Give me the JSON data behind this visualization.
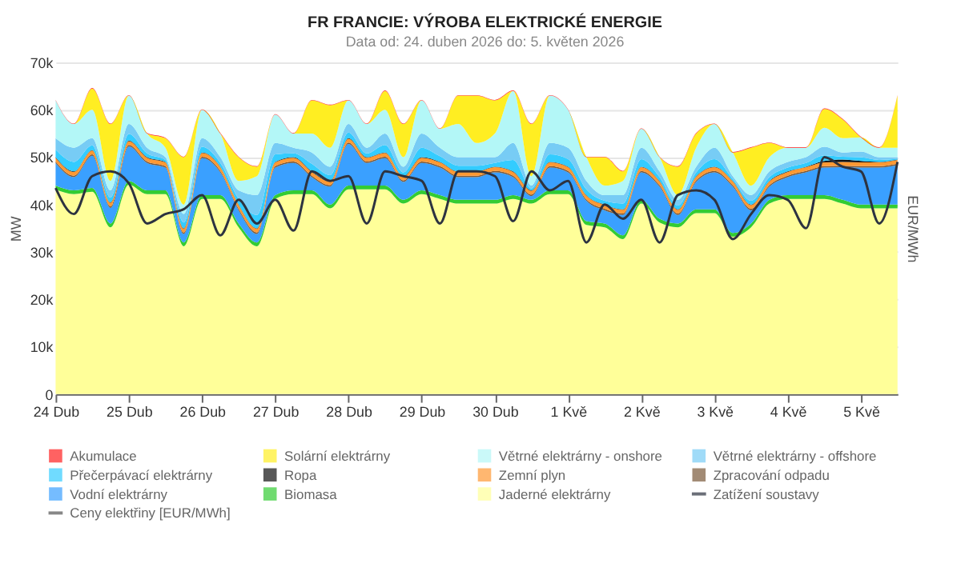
{
  "chart_data": {
    "type": "area",
    "stacked": true,
    "title": "FR FRANCIE: VÝROBA ELEKTRICKÉ ENERGIE",
    "subtitle": "Data od: 24. duben 2026 do: 5. květen 2026",
    "ylabel": "MW",
    "y2label": "EUR/MWh",
    "x": [
      "2026-04-24T00:00",
      "2026-04-24T06:00",
      "2026-04-24T12:00",
      "2026-04-24T18:00",
      "2026-04-25T00:00",
      "2026-04-25T06:00",
      "2026-04-25T12:00",
      "2026-04-25T18:00",
      "2026-04-26T00:00",
      "2026-04-26T06:00",
      "2026-04-26T12:00",
      "2026-04-26T18:00",
      "2026-04-27T00:00",
      "2026-04-27T06:00",
      "2026-04-27T12:00",
      "2026-04-27T18:00",
      "2026-04-28T00:00",
      "2026-04-28T06:00",
      "2026-04-28T12:00",
      "2026-04-28T18:00",
      "2026-04-29T00:00",
      "2026-04-29T06:00",
      "2026-04-29T12:00",
      "2026-04-29T18:00",
      "2026-04-30T00:00",
      "2026-04-30T06:00",
      "2026-04-30T12:00",
      "2026-04-30T18:00",
      "2026-05-01T00:00",
      "2026-05-01T06:00",
      "2026-05-01T12:00",
      "2026-05-01T18:00",
      "2026-05-02T00:00",
      "2026-05-02T06:00",
      "2026-05-02T12:00",
      "2026-05-02T18:00",
      "2026-05-03T00:00",
      "2026-05-03T06:00",
      "2026-05-03T12:00",
      "2026-05-03T18:00",
      "2026-05-04T00:00",
      "2026-05-04T06:00",
      "2026-05-04T12:00",
      "2026-05-04T18:00",
      "2026-05-05T00:00",
      "2026-05-05T06:00",
      "2026-05-05T12:00"
    ],
    "xlim": [
      "2026-04-24T00:00",
      "2026-05-05T12:00"
    ],
    "xticks": [
      {
        "value": "2026-04-24T00:00",
        "label": "24 Dub"
      },
      {
        "value": "2026-04-25T00:00",
        "label": "25 Dub"
      },
      {
        "value": "2026-04-26T00:00",
        "label": "26 Dub"
      },
      {
        "value": "2026-04-27T00:00",
        "label": "27 Dub"
      },
      {
        "value": "2026-04-28T00:00",
        "label": "28 Dub"
      },
      {
        "value": "2026-04-29T00:00",
        "label": "29 Dub"
      },
      {
        "value": "2026-04-30T00:00",
        "label": "30 Dub"
      },
      {
        "value": "2026-05-01T00:00",
        "label": "1 Kvě"
      },
      {
        "value": "2026-05-02T00:00",
        "label": "2 Kvě"
      },
      {
        "value": "2026-05-03T00:00",
        "label": "3 Kvě"
      },
      {
        "value": "2026-05-04T00:00",
        "label": "4 Kvě"
      },
      {
        "value": "2026-05-05T00:00",
        "label": "5 Kvě"
      }
    ],
    "ylim": [
      0,
      70000
    ],
    "yticks": [
      0,
      {
        "value": 10000,
        "label": "10k"
      },
      {
        "value": 20000,
        "label": "20k"
      },
      {
        "value": 30000,
        "label": "30k"
      },
      {
        "value": 40000,
        "label": "40k"
      },
      {
        "value": 50000,
        "label": "50k"
      },
      {
        "value": 60000,
        "label": "60k"
      },
      {
        "value": 70000,
        "label": "70k"
      }
    ],
    "grid": "y",
    "legend": "bottom",
    "series": [
      {
        "name": "Jaderné elektrárny",
        "color": "#ffff99",
        "values": [
          43200,
          42200,
          42700,
          35200,
          44200,
          42200,
          42200,
          31200,
          41200,
          41200,
          35200,
          31200,
          41200,
          42200,
          42200,
          39200,
          43200,
          43200,
          43200,
          40200,
          42200,
          41200,
          40200,
          40200,
          40200,
          41200,
          40200,
          42200,
          42200,
          35700,
          35200,
          32700,
          40200,
          36200,
          35200,
          38200,
          38200,
          33200,
          35200,
          40200,
          41200,
          41200,
          41200,
          40200,
          39200,
          39200,
          39200
        ]
      },
      {
        "name": "Biomasa",
        "color": "#33cc33",
        "values": [
          800,
          800,
          800,
          800,
          800,
          800,
          800,
          800,
          800,
          800,
          800,
          800,
          800,
          800,
          800,
          800,
          800,
          800,
          800,
          800,
          800,
          800,
          800,
          800,
          800,
          800,
          800,
          800,
          800,
          800,
          800,
          800,
          800,
          800,
          800,
          800,
          800,
          800,
          800,
          800,
          800,
          800,
          800,
          800,
          800,
          800,
          800
        ]
      },
      {
        "name": "Vodní elektrárny",
        "color": "#3aa0ff",
        "values": [
          4800,
          2800,
          6800,
          3300,
          7300,
          5800,
          4800,
          1800,
          7800,
          4800,
          2800,
          1800,
          5800,
          5800,
          2800,
          3800,
          8800,
          4800,
          5800,
          3800,
          5800,
          5800,
          4800,
          4800,
          5800,
          3800,
          800,
          4800,
          3800,
          4300,
          2800,
          4300,
          5800,
          6800,
          1800,
          5800,
          7800,
          9800,
          2800,
          2800,
          3800,
          4800,
          5800,
          6900,
          7800,
          7800,
          8300
        ]
      },
      {
        "name": "Zpracování odpadu",
        "color": "#7b5a3a",
        "values": [
          300,
          300,
          300,
          300,
          300,
          300,
          300,
          300,
          300,
          300,
          300,
          300,
          300,
          300,
          300,
          300,
          300,
          300,
          300,
          300,
          300,
          300,
          300,
          300,
          300,
          300,
          300,
          300,
          300,
          300,
          300,
          300,
          300,
          300,
          300,
          300,
          300,
          300,
          300,
          300,
          300,
          300,
          300,
          300,
          300,
          300,
          300
        ]
      },
      {
        "name": "Zemní plyn",
        "color": "#ff9933",
        "values": [
          800,
          800,
          800,
          800,
          800,
          800,
          800,
          800,
          800,
          800,
          800,
          800,
          800,
          800,
          800,
          800,
          800,
          800,
          800,
          800,
          800,
          800,
          800,
          800,
          800,
          800,
          800,
          800,
          800,
          800,
          800,
          800,
          800,
          800,
          800,
          800,
          800,
          800,
          800,
          800,
          800,
          800,
          800,
          800,
          800,
          800,
          800
        ]
      },
      {
        "name": "Ropa",
        "color": "#111111",
        "values": [
          100,
          100,
          100,
          100,
          100,
          100,
          100,
          100,
          100,
          100,
          100,
          100,
          100,
          100,
          100,
          100,
          100,
          100,
          100,
          100,
          100,
          100,
          100,
          100,
          100,
          100,
          100,
          100,
          100,
          100,
          100,
          100,
          100,
          100,
          100,
          100,
          100,
          100,
          100,
          100,
          100,
          100,
          300,
          500,
          300,
          100,
          100
        ]
      },
      {
        "name": "Přečerpávací elektrárny",
        "color": "#33ccff",
        "values": [
          1600,
          2000,
          1000,
          1000,
          1400,
          800,
          400,
          1200,
          1200,
          800,
          1200,
          2800,
          1600,
          800,
          1600,
          1200,
          1200,
          800,
          1600,
          800,
          2000,
          1200,
          1200,
          1200,
          800,
          2400,
          400,
          1600,
          1600,
          1200,
          800,
          1200,
          1600,
          800,
          800,
          800,
          1600,
          400,
          800,
          800,
          800,
          800,
          1200,
          600,
          800,
          400,
          200
        ]
      },
      {
        "name": "Větrné elektrárny - offshore",
        "color": "#77ccf5",
        "values": [
          2400,
          3000,
          1500,
          1500,
          2100,
          1200,
          600,
          1800,
          1800,
          1200,
          1800,
          4200,
          2400,
          1200,
          2400,
          1800,
          1800,
          1200,
          2400,
          1200,
          3000,
          1800,
          1800,
          1800,
          1200,
          3600,
          600,
          2400,
          2400,
          1800,
          1200,
          1800,
          2400,
          1200,
          1200,
          1200,
          2400,
          600,
          1200,
          1200,
          1200,
          1200,
          1800,
          900,
          1200,
          600,
          300
        ]
      },
      {
        "name": "Větrné elektrárny - onshore",
        "color": "#b3f7f7",
        "values": [
          8000,
          5000,
          6000,
          2000,
          6000,
          3000,
          2000,
          2000,
          6000,
          5000,
          2000,
          4000,
          6000,
          3000,
          4000,
          4000,
          5000,
          5000,
          5000,
          2000,
          7000,
          4000,
          7000,
          3000,
          5000,
          11000,
          2000,
          10000,
          8000,
          5000,
          2000,
          3000,
          4000,
          3000,
          1000,
          4000,
          5000,
          5000,
          2000,
          3000,
          3000,
          2000,
          4000,
          3000,
          3000,
          2000,
          2000
        ]
      },
      {
        "name": "Solární elektrárny",
        "color": "#ffee22",
        "values": [
          0,
          0,
          4500,
          12000,
          0,
          0,
          2000,
          10000,
          0,
          0,
          5000,
          2000,
          0,
          0,
          7000,
          9000,
          0,
          0,
          4000,
          7000,
          0,
          0,
          6000,
          10000,
          7000,
          0,
          11000,
          0,
          0,
          0,
          6000,
          2000,
          0,
          0,
          6000,
          3000,
          0,
          0,
          8000,
          3000,
          0,
          0,
          4000,
          4000,
          0,
          0,
          11000
        ]
      },
      {
        "name": "Akumulace",
        "color": "#ff2020",
        "values": [
          100,
          100,
          100,
          100,
          100,
          100,
          100,
          100,
          100,
          100,
          100,
          100,
          100,
          100,
          100,
          100,
          100,
          100,
          100,
          100,
          100,
          100,
          100,
          100,
          100,
          100,
          100,
          100,
          100,
          100,
          100,
          100,
          100,
          100,
          100,
          100,
          100,
          100,
          100,
          100,
          100,
          100,
          100,
          100,
          100,
          100,
          100
        ]
      },
      {
        "name": "Zatížení soustavy",
        "type": "line",
        "color": "#2d3340",
        "values": [
          43500,
          38000,
          46000,
          47000,
          44500,
          36000,
          38000,
          39000,
          42000,
          33500,
          41000,
          36000,
          41000,
          34500,
          47000,
          45000,
          46000,
          36000,
          47000,
          46000,
          45000,
          36000,
          47000,
          47000,
          46000,
          36500,
          47000,
          43000,
          45000,
          32000,
          40000,
          37000,
          41000,
          32000,
          42000,
          43000,
          41000,
          32700,
          38000,
          42000,
          41000,
          35000,
          50000,
          48000,
          47000,
          36000,
          49000
        ]
      },
      {
        "name": "Ceny elektřiny [EUR/MWh]",
        "type": "line",
        "axis": "y2",
        "color": "#555555",
        "values": [
          null,
          null,
          null,
          null,
          null,
          null,
          null,
          null,
          null,
          null,
          null,
          null,
          null,
          null,
          null,
          null,
          null,
          null,
          null,
          null,
          null,
          null,
          null,
          null,
          null,
          null,
          null,
          null,
          null,
          null,
          null,
          null,
          null,
          null,
          null,
          null,
          null,
          null,
          null,
          null,
          null,
          null,
          null,
          null,
          null,
          null,
          null
        ]
      }
    ]
  }
}
